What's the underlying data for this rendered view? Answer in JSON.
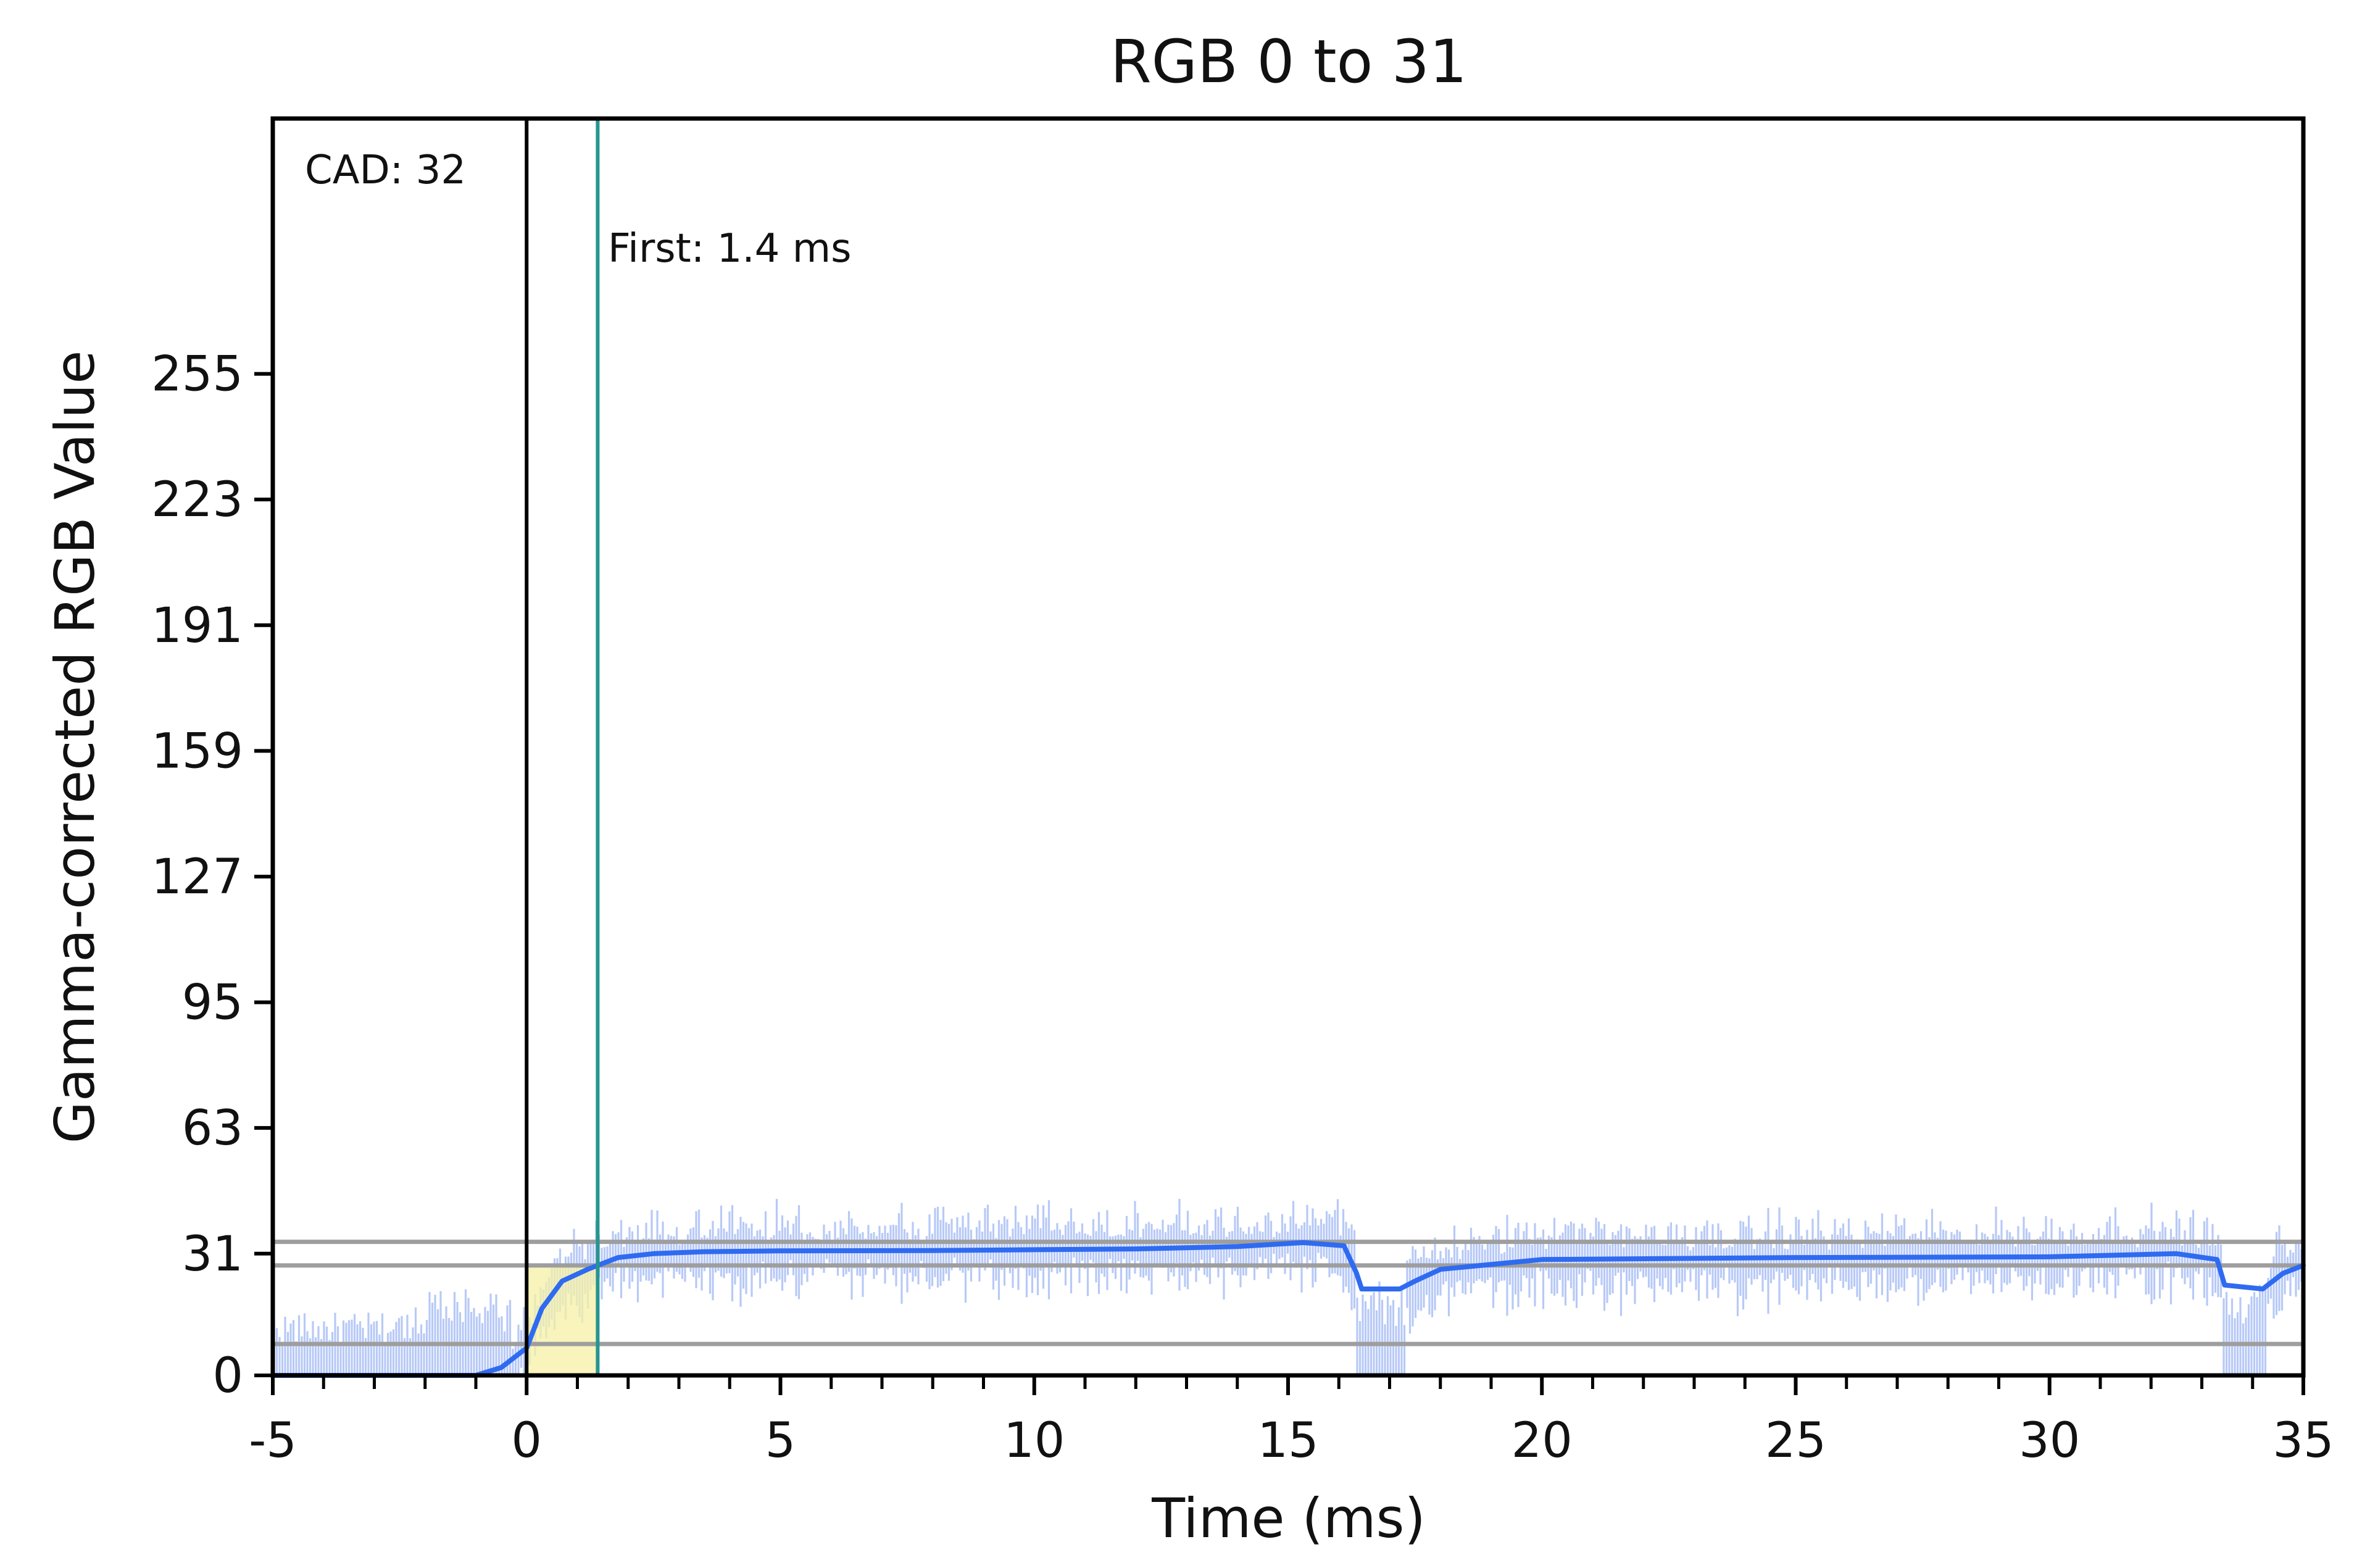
{
  "chart_data": {
    "type": "line",
    "title": "RGB 0 to 31",
    "xlabel": "Time (ms)",
    "ylabel": "Gamma-corrected RGB Value",
    "xlim": [
      -5,
      35
    ],
    "ylim": [
      0,
      320
    ],
    "xticks": [
      -5,
      0,
      5,
      10,
      15,
      20,
      25,
      30,
      35
    ],
    "xtick_labels": [
      "-5",
      "0",
      "5",
      "10",
      "15",
      "20",
      "25",
      "30",
      "35"
    ],
    "yticks": [
      0,
      31,
      63,
      95,
      127,
      159,
      191,
      223,
      255
    ],
    "ytick_labels": [
      "0",
      "31",
      "63",
      "95",
      "127",
      "159",
      "191",
      "223",
      "255"
    ],
    "grid": false,
    "reference_lines": {
      "horizontal": [
        8,
        28,
        34
      ],
      "vertical_start": 0,
      "vertical_first": 1.4
    },
    "annotations": {
      "cad": "CAD: 32",
      "first": "First: 1.4 ms"
    },
    "series": [
      {
        "kind": "smoothed",
        "color": "#2f6bf0",
        "x": [
          -5,
          -1,
          -0.5,
          0,
          0.3,
          0.7,
          1.2,
          1.8,
          2.5,
          3.5,
          5,
          8,
          10,
          12,
          14,
          15.3,
          16.1,
          16.35,
          16.45,
          17.2,
          17.5,
          18.0,
          20,
          25,
          30,
          32.5,
          33.3,
          33.45,
          34.2,
          34.6,
          35
        ],
        "y": [
          0,
          0,
          2,
          7,
          17,
          24,
          27,
          30,
          31,
          31.5,
          31.7,
          31.8,
          32,
          32.2,
          32.8,
          33.8,
          33,
          26,
          22,
          22,
          24,
          27,
          29.5,
          30,
          30.2,
          31,
          29.5,
          23,
          22,
          26,
          28
        ]
      },
      {
        "kind": "raw",
        "color": "#b7c9f7"
      }
    ],
    "colors": {
      "smoothed": "#2f6bf0",
      "raw": "#b7c9f7",
      "first_line": "#26958f",
      "start_line": "#000000",
      "reference": "#9e9e9e",
      "highlight": "#f5f0a6"
    }
  }
}
